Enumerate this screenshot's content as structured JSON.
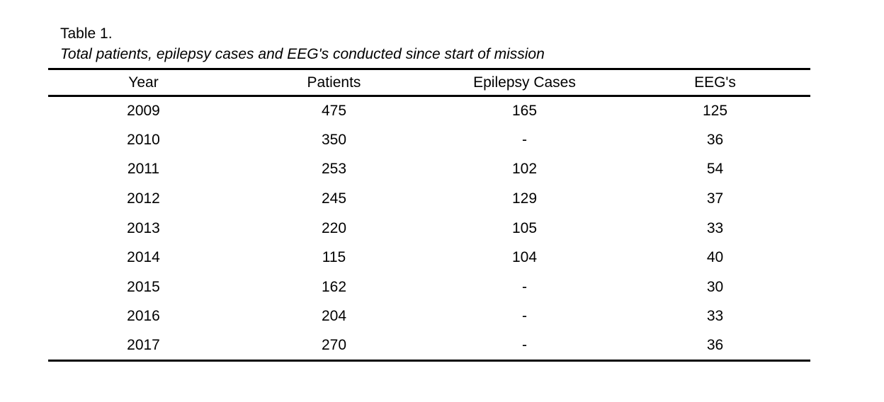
{
  "document": {
    "table_label": "Table 1.",
    "table_caption": "Total patients, epilepsy cases and EEG's conducted since start of mission"
  },
  "table": {
    "columns": [
      "Year",
      "Patients",
      "Epilepsy Cases",
      "EEG's"
    ],
    "rows": [
      [
        "2009",
        "475",
        "165",
        "125"
      ],
      [
        "2010",
        "350",
        "-",
        "36"
      ],
      [
        "2011",
        "253",
        "102",
        "54"
      ],
      [
        "2012",
        "245",
        "129",
        "37"
      ],
      [
        "2013",
        "220",
        "105",
        "33"
      ],
      [
        "2014",
        "115",
        "104",
        "40"
      ],
      [
        "2015",
        "162",
        "-",
        "30"
      ],
      [
        "2016",
        "204",
        "-",
        "33"
      ],
      [
        "2017",
        "270",
        "-",
        "36"
      ]
    ],
    "missing_value_marker": "-"
  },
  "chart_data": {
    "type": "table",
    "title": "Total patients, epilepsy cases and EEG's conducted since start of mission",
    "categories": [
      "2009",
      "2010",
      "2011",
      "2012",
      "2013",
      "2014",
      "2015",
      "2016",
      "2017"
    ],
    "series": [
      {
        "name": "Patients",
        "values": [
          475,
          350,
          253,
          245,
          220,
          115,
          162,
          204,
          270
        ]
      },
      {
        "name": "Epilepsy Cases",
        "values": [
          165,
          null,
          102,
          129,
          105,
          104,
          null,
          null,
          null
        ]
      },
      {
        "name": "EEG's",
        "values": [
          125,
          36,
          54,
          37,
          33,
          40,
          30,
          33,
          36
        ]
      }
    ]
  },
  "colors": {
    "background": "#ffffff",
    "text": "#000000",
    "rule": "#000000"
  }
}
